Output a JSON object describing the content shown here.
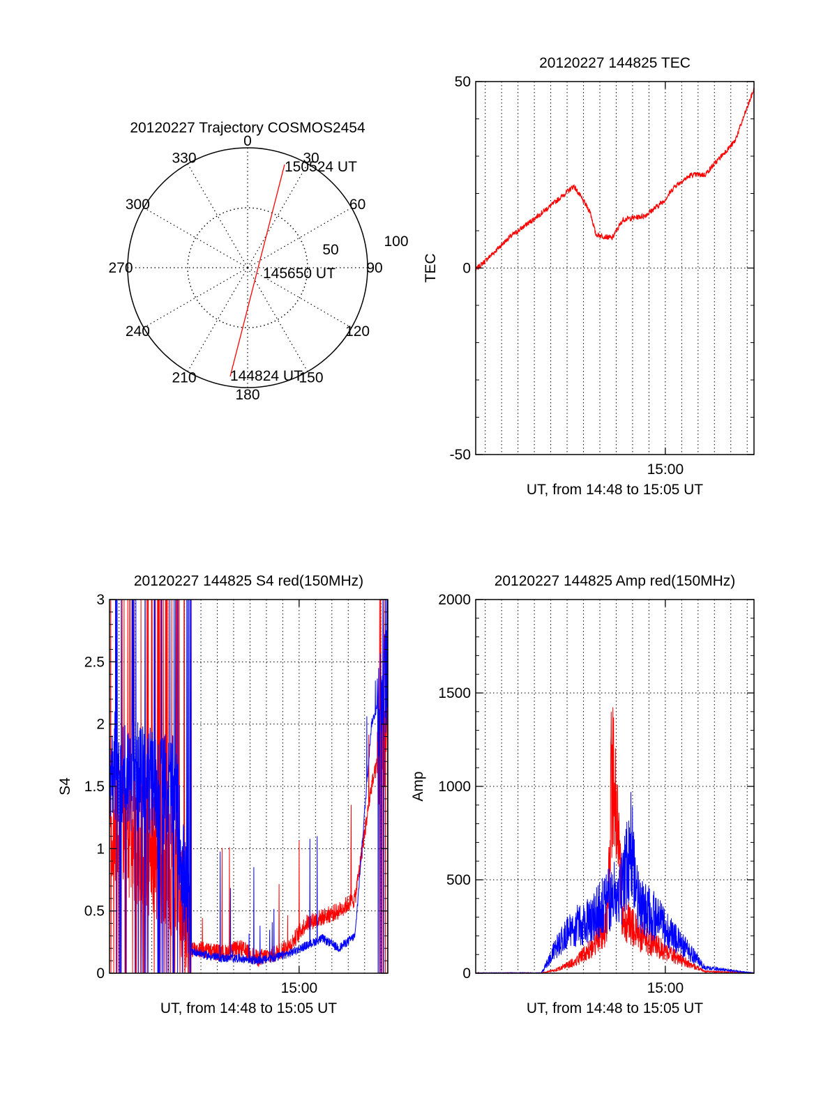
{
  "colors": {
    "red": "#ff0000",
    "blue": "#0000ff",
    "axis": "#000000",
    "grid": "#000000"
  },
  "chart_data": [
    {
      "type": "polar",
      "title": "20120227 Trajectory COSMOS2454",
      "angle_labels": [
        "0",
        "30",
        "60",
        "90",
        "120",
        "150",
        "180",
        "210",
        "240",
        "270",
        "300",
        "330"
      ],
      "radius_labels": [
        "50",
        "100"
      ],
      "rlim": [
        0,
        100
      ],
      "grid": true,
      "series": [
        {
          "color": "red",
          "points": [
            [
              194,
              78
            ],
            [
              165,
              10
            ],
            [
              20,
              85
            ]
          ]
        }
      ],
      "annotations": [
        "150524 UT",
        "145650 UT",
        "144824 UT"
      ]
    },
    {
      "type": "line",
      "title": "20120227 144825 TEC",
      "xlabel": "UT, from 14:48 to 15:05 UT",
      "ylabel": "TEC",
      "xlim": [
        "14:48:25",
        "15:05:25"
      ],
      "ylim": [
        -50,
        50
      ],
      "yticks": [
        "-50",
        "0",
        "50"
      ],
      "xticks": [
        "15:00"
      ],
      "grid": true,
      "series": [
        {
          "color": "red",
          "x": [
            "14:48:25",
            "14:49:15",
            "14:50:25",
            "14:51:55",
            "14:53:05",
            "14:54:25",
            "14:55:25",
            "14:55:45",
            "14:56:45",
            "14:57:25",
            "14:58:45",
            "14:59:55",
            "15:00:35",
            "15:01:35",
            "15:02:25",
            "15:03:25",
            "15:04:15",
            "15:05:25"
          ],
          "y": [
            -0.5,
            3,
            8,
            13,
            17,
            22,
            15,
            9,
            8,
            13,
            14,
            18,
            22,
            25,
            25,
            30,
            34,
            48
          ]
        }
      ]
    },
    {
      "type": "line",
      "title": "20120227 144825 S4 red(150MHz)",
      "xlabel": "UT, from 14:48 to 15:05 UT",
      "ylabel": "S4",
      "xlim": [
        "14:48:25",
        "15:05:25"
      ],
      "ylim": [
        0,
        3
      ],
      "yticks": [
        "0",
        "0.5",
        "1",
        "1.5",
        "2",
        "2.5",
        "3"
      ],
      "xticks": [
        "15:00"
      ],
      "grid": true,
      "series": [
        {
          "color": "red",
          "x": [
            "14:48:25",
            "14:49:25",
            "14:50:25",
            "14:51:25",
            "14:52:25",
            "14:53:25",
            "14:54:25",
            "14:55:25",
            "14:56:25",
            "14:57:25",
            "14:58:25",
            "14:59:25",
            "15:00:25",
            "15:01:25",
            "15:02:25",
            "15:03:25",
            "15:04:25",
            "15:05:25"
          ],
          "y": [
            1.3,
            1.1,
            1.0,
            0.9,
            0.75,
            0.2,
            0.18,
            0.16,
            0.2,
            0.12,
            0.15,
            0.22,
            0.4,
            0.45,
            0.5,
            0.6,
            1.5,
            2.0
          ]
        },
        {
          "color": "blue",
          "x": [
            "14:48:25",
            "14:49:25",
            "14:50:25",
            "14:51:25",
            "14:52:25",
            "14:53:25",
            "14:54:25",
            "14:55:25",
            "14:56:25",
            "14:57:25",
            "14:58:25",
            "14:59:25",
            "15:00:25",
            "15:01:25",
            "15:02:25",
            "15:03:25",
            "15:04:25",
            "15:05:25"
          ],
          "y": [
            1.7,
            1.6,
            1.55,
            1.5,
            1.45,
            0.18,
            0.14,
            0.12,
            0.12,
            0.1,
            0.12,
            0.16,
            0.22,
            0.28,
            0.2,
            0.3,
            2.0,
            2.4
          ]
        }
      ]
    },
    {
      "type": "line",
      "title": "20120227 144825 Amp red(150MHz)",
      "xlabel": "UT, from 14:48 to 15:05 UT",
      "ylabel": "Amp",
      "xlim": [
        "14:48:25",
        "15:05:25"
      ],
      "ylim": [
        0,
        2000
      ],
      "yticks": [
        "0",
        "500",
        "1000",
        "1500",
        "2000"
      ],
      "xticks": [
        "15:00"
      ],
      "grid": true,
      "series": [
        {
          "color": "red",
          "x": [
            "14:48:25",
            "14:52:25",
            "14:53:25",
            "14:54:25",
            "14:55:25",
            "14:56:25",
            "14:56:45",
            "14:57:25",
            "14:58:25",
            "14:59:25",
            "15:00:25",
            "15:01:25",
            "15:02:25",
            "15:05:25"
          ],
          "y": [
            0,
            0,
            20,
            60,
            130,
            250,
            1120,
            300,
            200,
            150,
            100,
            50,
            10,
            0
          ]
        },
        {
          "color": "blue",
          "x": [
            "14:48:25",
            "14:52:25",
            "14:53:25",
            "14:54:25",
            "14:55:25",
            "14:56:25",
            "14:57:25",
            "14:57:55",
            "14:58:25",
            "14:59:25",
            "15:00:25",
            "15:01:25",
            "15:02:25",
            "15:05:25"
          ],
          "y": [
            0,
            0,
            150,
            250,
            280,
            380,
            480,
            700,
            350,
            300,
            200,
            120,
            30,
            0
          ]
        }
      ]
    }
  ]
}
